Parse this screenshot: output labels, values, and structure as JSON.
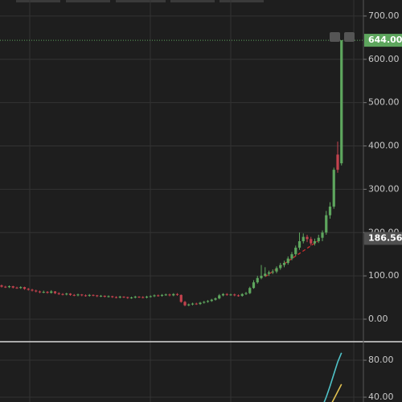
{
  "chart_data": [
    {
      "type": "candlestick",
      "open": [
        78,
        75,
        74,
        76,
        73,
        72,
        74,
        70,
        68,
        66,
        64,
        62,
        63,
        61,
        64,
        60,
        58,
        57,
        59,
        56,
        55,
        57,
        55,
        54,
        56,
        55,
        53,
        54,
        52,
        53,
        51,
        50,
        52,
        51,
        49,
        50,
        52,
        51,
        50,
        52,
        53,
        55,
        54,
        56,
        57,
        55,
        58,
        56,
        40,
        32,
        34,
        36,
        35,
        38,
        40,
        42,
        45,
        48,
        55,
        58,
        56,
        57,
        55,
        54,
        58,
        60,
        72,
        85,
        95,
        100,
        105,
        108,
        110,
        118,
        125,
        130,
        140,
        150,
        165,
        180,
        190,
        185,
        175,
        180,
        188,
        200,
        240,
        260,
        380,
        360
      ],
      "close": [
        75,
        74,
        76,
        73,
        72,
        74,
        70,
        68,
        66,
        64,
        62,
        63,
        61,
        64,
        60,
        58,
        57,
        59,
        56,
        55,
        57,
        55,
        54,
        56,
        55,
        53,
        54,
        52,
        53,
        51,
        50,
        52,
        51,
        49,
        50,
        52,
        51,
        50,
        52,
        53,
        55,
        54,
        56,
        57,
        55,
        58,
        56,
        40,
        32,
        34,
        36,
        35,
        38,
        40,
        42,
        45,
        48,
        55,
        58,
        56,
        57,
        55,
        54,
        58,
        60,
        72,
        85,
        95,
        100,
        105,
        108,
        110,
        118,
        125,
        130,
        140,
        150,
        165,
        180,
        190,
        185,
        175,
        180,
        188,
        200,
        240,
        260,
        345,
        345,
        644
      ],
      "high": [
        80,
        77,
        78,
        77,
        75,
        76,
        75,
        72,
        70,
        68,
        66,
        66,
        65,
        67,
        65,
        62,
        60,
        61,
        60,
        58,
        59,
        58,
        57,
        58,
        57,
        56,
        56,
        55,
        55,
        54,
        53,
        54,
        53,
        52,
        52,
        54,
        53,
        53,
        54,
        55,
        57,
        57,
        58,
        59,
        59,
        60,
        60,
        57,
        42,
        36,
        38,
        38,
        40,
        42,
        44,
        47,
        50,
        58,
        60,
        60,
        59,
        59,
        57,
        60,
        63,
        75,
        90,
        100,
        125,
        120,
        112,
        115,
        122,
        130,
        135,
        145,
        155,
        170,
        200,
        198,
        195,
        190,
        186,
        195,
        205,
        250,
        270,
        350,
        410,
        644
      ],
      "low": [
        73,
        72,
        72,
        71,
        70,
        70,
        68,
        66,
        64,
        62,
        60,
        60,
        59,
        59,
        58,
        56,
        55,
        55,
        54,
        53,
        53,
        53,
        52,
        52,
        53,
        51,
        51,
        50,
        50,
        49,
        48,
        48,
        49,
        47,
        47,
        48,
        49,
        48,
        48,
        50,
        51,
        52,
        52,
        54,
        53,
        53,
        54,
        38,
        30,
        30,
        32,
        33,
        33,
        36,
        38,
        40,
        43,
        46,
        53,
        54,
        54,
        53,
        52,
        52,
        56,
        58,
        70,
        82,
        92,
        98,
        100,
        104,
        106,
        114,
        120,
        126,
        136,
        146,
        160,
        175,
        178,
        170,
        170,
        176,
        180,
        195,
        232,
        255,
        338,
        355
      ],
      "up_color": "#5ea65e",
      "down_color": "#c4424e",
      "ylim": [
        -52,
        737
      ],
      "yticks": [
        {
          "value": 0,
          "label": "0.00"
        },
        {
          "value": 100,
          "label": "100.00"
        },
        {
          "value": 200,
          "label": "200.00"
        },
        {
          "value": 300,
          "label": "300.00"
        },
        {
          "value": 400,
          "label": "400.00"
        },
        {
          "value": 500,
          "label": "500.00"
        },
        {
          "value": 600,
          "label": "600.00"
        },
        {
          "value": 700,
          "label": "700.00"
        }
      ],
      "last_price": {
        "value": 644,
        "label": "644.00"
      },
      "crosshair_price": {
        "value": 186.56,
        "label": "186.56"
      }
    },
    {
      "type": "line",
      "series": [
        {
          "color": "#4fc3c8",
          "values": [
            null,
            null,
            null,
            null,
            null,
            null,
            null,
            null,
            null,
            null,
            null,
            null,
            null,
            null,
            null,
            null,
            null,
            null,
            null,
            null,
            null,
            null,
            null,
            null,
            null,
            null,
            null,
            null,
            null,
            null,
            null,
            null,
            null,
            null,
            null,
            null,
            null,
            null,
            null,
            null,
            null,
            null,
            null,
            null,
            null,
            null,
            null,
            null,
            null,
            null,
            null,
            null,
            null,
            null,
            null,
            null,
            null,
            null,
            null,
            null,
            null,
            null,
            null,
            null,
            null,
            null,
            null,
            null,
            null,
            null,
            null,
            null,
            null,
            null,
            null,
            null,
            null,
            null,
            null,
            null,
            null,
            null,
            null,
            null,
            30,
            40,
            52,
            65,
            78,
            88
          ]
        },
        {
          "color": "#e0c050",
          "values": [
            null,
            null,
            null,
            null,
            null,
            null,
            null,
            null,
            null,
            null,
            null,
            null,
            null,
            null,
            null,
            null,
            null,
            null,
            null,
            null,
            null,
            null,
            null,
            null,
            null,
            null,
            null,
            null,
            null,
            null,
            null,
            null,
            null,
            null,
            null,
            null,
            null,
            null,
            null,
            null,
            null,
            null,
            null,
            null,
            null,
            null,
            null,
            null,
            null,
            null,
            null,
            null,
            null,
            null,
            null,
            null,
            null,
            null,
            null,
            null,
            null,
            null,
            null,
            null,
            null,
            null,
            null,
            null,
            null,
            null,
            null,
            null,
            null,
            null,
            null,
            null,
            null,
            null,
            null,
            null,
            null,
            null,
            null,
            null,
            null,
            null,
            30,
            38,
            46,
            54
          ]
        }
      ],
      "ylim": [
        34.8,
        98.3
      ],
      "yticks": [
        {
          "value": 40,
          "label": "40.00"
        },
        {
          "value": 80,
          "label": "80.00"
        }
      ]
    }
  ]
}
